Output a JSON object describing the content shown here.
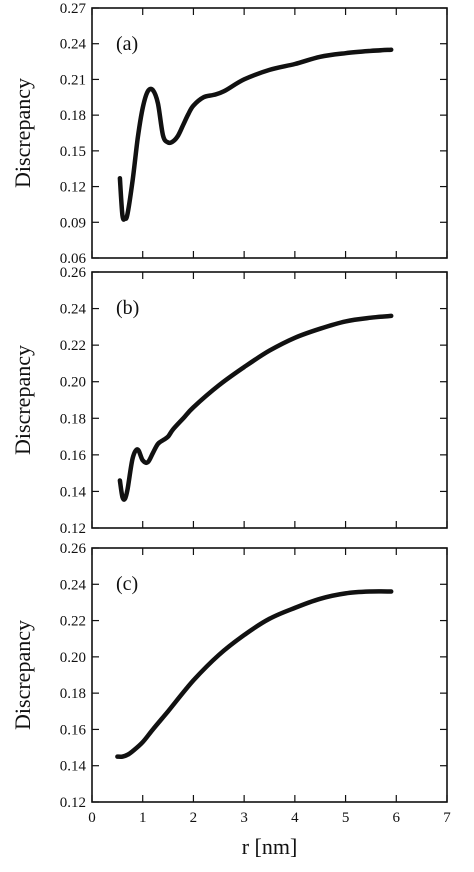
{
  "chart_data": [
    {
      "type": "line",
      "panel_label": "(a)",
      "ylabel": "Discrepancy",
      "xlabel": "",
      "xlim": [
        0,
        7
      ],
      "ylim": [
        0.06,
        0.27
      ],
      "yticks": [
        "0.06",
        "0.09",
        "0.12",
        "0.15",
        "0.18",
        "0.21",
        "0.24",
        "0.27"
      ],
      "xticks": [],
      "series": [
        {
          "x": [
            0.55,
            0.6,
            0.65,
            0.7,
            0.8,
            0.9,
            1.0,
            1.1,
            1.2,
            1.3,
            1.4,
            1.5,
            1.6,
            1.7,
            1.8,
            1.9,
            2.0,
            2.2,
            2.4,
            2.6,
            3.0,
            3.5,
            4.0,
            4.5,
            5.0,
            5.5,
            5.9
          ],
          "y": [
            0.127,
            0.096,
            0.093,
            0.097,
            0.125,
            0.16,
            0.186,
            0.2,
            0.201,
            0.19,
            0.163,
            0.157,
            0.158,
            0.163,
            0.172,
            0.181,
            0.188,
            0.195,
            0.197,
            0.2,
            0.21,
            0.218,
            0.223,
            0.229,
            0.232,
            0.234,
            0.235
          ]
        }
      ]
    },
    {
      "type": "line",
      "panel_label": "(b)",
      "ylabel": "Discrepancy",
      "xlabel": "",
      "xlim": [
        0,
        7
      ],
      "ylim": [
        0.12,
        0.26
      ],
      "yticks": [
        "0.12",
        "0.14",
        "0.16",
        "0.18",
        "0.20",
        "0.22",
        "0.24",
        "0.26"
      ],
      "xticks": [],
      "series": [
        {
          "x": [
            0.55,
            0.6,
            0.65,
            0.7,
            0.8,
            0.9,
            1.0,
            1.1,
            1.2,
            1.3,
            1.4,
            1.5,
            1.6,
            1.8,
            2.0,
            2.5,
            3.0,
            3.5,
            4.0,
            4.5,
            5.0,
            5.5,
            5.9
          ],
          "y": [
            0.146,
            0.137,
            0.136,
            0.141,
            0.158,
            0.163,
            0.157,
            0.156,
            0.161,
            0.166,
            0.168,
            0.17,
            0.174,
            0.18,
            0.186,
            0.198,
            0.208,
            0.217,
            0.224,
            0.229,
            0.233,
            0.235,
            0.236
          ]
        }
      ]
    },
    {
      "type": "line",
      "panel_label": "(c)",
      "ylabel": "Discrepancy",
      "xlabel": "r [nm]",
      "xlim": [
        0,
        7
      ],
      "ylim": [
        0.12,
        0.26
      ],
      "yticks": [
        "0.12",
        "0.14",
        "0.16",
        "0.18",
        "0.20",
        "0.22",
        "0.24",
        "0.26"
      ],
      "xticks": [
        "0",
        "1",
        "2",
        "3",
        "4",
        "5",
        "6",
        "7"
      ],
      "series": [
        {
          "x": [
            0.5,
            0.6,
            0.7,
            0.8,
            1.0,
            1.2,
            1.5,
            2.0,
            2.5,
            3.0,
            3.5,
            4.0,
            4.5,
            5.0,
            5.5,
            5.9
          ],
          "y": [
            0.145,
            0.145,
            0.146,
            0.148,
            0.153,
            0.16,
            0.17,
            0.187,
            0.201,
            0.212,
            0.221,
            0.227,
            0.232,
            0.235,
            0.236,
            0.236
          ]
        }
      ]
    }
  ]
}
